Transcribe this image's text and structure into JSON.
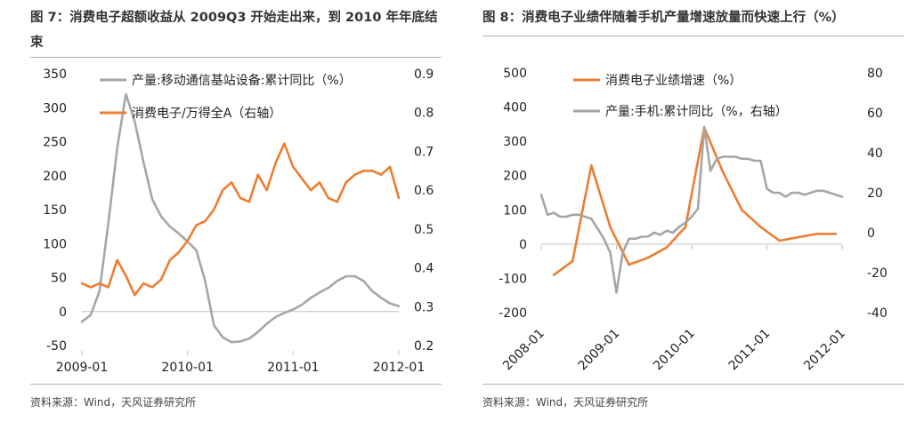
{
  "colors": {
    "gray": "#a6a6a6",
    "orange": "#ed7d31"
  },
  "panel1": {
    "title": "图 7：消费电子超额收益从 2009Q3 开始走出来，到 2010 年年底结束",
    "source": "资料来源：Wind，天风证券研究所"
  },
  "panel2": {
    "title": "图 8：消费电子业绩伴随着手机产量增速放量而快速上行（%）",
    "source": "资料来源：Wind，天风证券研究所"
  },
  "chart_data": [
    {
      "type": "line",
      "title": "图 7：消费电子超额收益从 2009Q3 开始走出来，到 2010 年年底结束",
      "x_ticks": [
        "2009-01",
        "2010-01",
        "2011-01",
        "2012-01"
      ],
      "x_range": [
        "2009-01",
        "2012-01"
      ],
      "ylim_left": [
        -50,
        350
      ],
      "yticks_left": [
        -50,
        0,
        50,
        100,
        150,
        200,
        250,
        300,
        350
      ],
      "ylim_right": [
        0.2,
        0.9
      ],
      "yticks_right": [
        0.2,
        0.3,
        0.4,
        0.5,
        0.6,
        0.7,
        0.8,
        0.9
      ],
      "legend_position": "top-center",
      "series": [
        {
          "name": "产量:移动通信基站设备:累计同比（%）",
          "axis": "left",
          "color": "gray",
          "x": [
            "2009-01",
            "2009-02",
            "2009-03",
            "2009-04",
            "2009-05",
            "2009-06",
            "2009-07",
            "2009-08",
            "2009-09",
            "2009-10",
            "2009-11",
            "2009-12",
            "2010-01",
            "2010-02",
            "2010-03",
            "2010-04",
            "2010-05",
            "2010-06",
            "2010-07",
            "2010-08",
            "2010-09",
            "2010-10",
            "2010-11",
            "2010-12",
            "2011-01",
            "2011-02",
            "2011-03",
            "2011-04",
            "2011-05",
            "2011-06",
            "2011-07",
            "2011-08",
            "2011-09",
            "2011-10",
            "2011-11",
            "2011-12",
            "2012-01"
          ],
          "values": [
            -15,
            -5,
            30,
            130,
            240,
            320,
            280,
            220,
            165,
            140,
            125,
            115,
            103,
            90,
            45,
            -20,
            -38,
            -45,
            -44,
            -40,
            -30,
            -18,
            -8,
            -2,
            3,
            10,
            20,
            28,
            35,
            45,
            52,
            52,
            45,
            30,
            20,
            12,
            8
          ]
        },
        {
          "name": "消费电子/万得全A（右轴）",
          "axis": "right",
          "color": "orange",
          "x": [
            "2009-01",
            "2009-02",
            "2009-03",
            "2009-04",
            "2009-05",
            "2009-06",
            "2009-07",
            "2009-08",
            "2009-09",
            "2009-10",
            "2009-11",
            "2009-12",
            "2010-01",
            "2010-02",
            "2010-03",
            "2010-04",
            "2010-05",
            "2010-06",
            "2010-07",
            "2010-08",
            "2010-09",
            "2010-10",
            "2010-11",
            "2010-12",
            "2011-01",
            "2011-02",
            "2011-03",
            "2011-04",
            "2011-05",
            "2011-06",
            "2011-07",
            "2011-08",
            "2011-09",
            "2011-10",
            "2011-11",
            "2011-12",
            "2012-01"
          ],
          "values": [
            0.36,
            0.35,
            0.36,
            0.35,
            0.42,
            0.38,
            0.33,
            0.36,
            0.35,
            0.37,
            0.42,
            0.44,
            0.47,
            0.51,
            0.52,
            0.55,
            0.6,
            0.62,
            0.58,
            0.57,
            0.64,
            0.6,
            0.67,
            0.72,
            0.66,
            0.63,
            0.6,
            0.62,
            0.58,
            0.57,
            0.62,
            0.64,
            0.65,
            0.65,
            0.64,
            0.66,
            0.58
          ]
        }
      ]
    },
    {
      "type": "line",
      "title": "图 8：消费电子业绩伴随着手机产量增速放量而快速上行（%）",
      "x_ticks": [
        "2008-01",
        "2009-01",
        "2010-01",
        "2011-01",
        "2012-01"
      ],
      "x_range": [
        "2008-01",
        "2012-01"
      ],
      "ylim_left": [
        -200,
        500
      ],
      "yticks_left": [
        -200,
        -100,
        0,
        100,
        200,
        300,
        400,
        500
      ],
      "ylim_right": [
        -40,
        80
      ],
      "yticks_right": [
        -40,
        -20,
        0,
        20,
        40,
        60,
        80
      ],
      "legend_position": "top-center",
      "series": [
        {
          "name": "消费电子业绩增速（%）",
          "axis": "left",
          "color": "orange",
          "x": [
            "2008-03",
            "2008-06",
            "2008-09",
            "2008-12",
            "2009-03",
            "2009-06",
            "2009-09",
            "2009-12",
            "2010-03",
            "2010-06",
            "2010-09",
            "2010-12",
            "2011-03",
            "2011-06",
            "2011-09",
            "2011-12"
          ],
          "values": [
            -90,
            -50,
            230,
            50,
            -60,
            -40,
            -10,
            50,
            340,
            210,
            100,
            50,
            10,
            20,
            30,
            30
          ]
        },
        {
          "name": "产量:手机:累计同比（%，右轴）",
          "axis": "right",
          "color": "gray",
          "x": [
            "2008-01",
            "2008-02",
            "2008-03",
            "2008-04",
            "2008-05",
            "2008-06",
            "2008-07",
            "2008-08",
            "2008-09",
            "2008-10",
            "2008-11",
            "2008-12",
            "2009-01",
            "2009-02",
            "2009-03",
            "2009-04",
            "2009-05",
            "2009-06",
            "2009-07",
            "2009-08",
            "2009-09",
            "2009-10",
            "2009-11",
            "2009-12",
            "2010-01",
            "2010-02",
            "2010-03",
            "2010-04",
            "2010-05",
            "2010-06",
            "2010-07",
            "2010-08",
            "2010-09",
            "2010-10",
            "2010-11",
            "2010-12",
            "2011-01",
            "2011-02",
            "2011-03",
            "2011-04",
            "2011-05",
            "2011-06",
            "2011-07",
            "2011-08",
            "2011-09",
            "2011-10",
            "2011-11",
            "2011-12",
            "2012-01"
          ],
          "values": [
            19,
            9,
            10,
            8,
            8,
            9,
            9,
            8,
            7,
            2,
            -3,
            -10,
            -30,
            -10,
            -3,
            -3,
            -2,
            -2,
            0,
            -1,
            1,
            0,
            3,
            5,
            8,
            12,
            53,
            31,
            37,
            38,
            38,
            38,
            37,
            37,
            36,
            36,
            22,
            20,
            20,
            18,
            20,
            20,
            19,
            20,
            21,
            21,
            20,
            19,
            18
          ]
        }
      ]
    }
  ]
}
